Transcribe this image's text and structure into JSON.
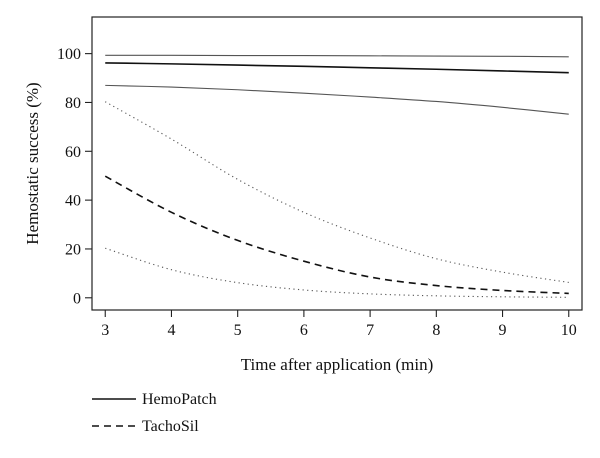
{
  "chart_data": {
    "type": "line",
    "title": "",
    "xlabel": "Time after application (min)",
    "ylabel": "Hemostatic success (%)",
    "xlim": [
      2.8,
      10.2
    ],
    "ylim": [
      -5,
      115
    ],
    "xticks": [
      3,
      4,
      5,
      6,
      7,
      8,
      9,
      10
    ],
    "yticks": [
      0,
      20,
      40,
      60,
      80,
      100
    ],
    "grid": false,
    "legend_position": "bottom-left",
    "series": [
      {
        "name": "HemoPatch",
        "role": "estimate",
        "line_style": "solid",
        "color": "#111111",
        "x": [
          3,
          4,
          5,
          6,
          7,
          8,
          9,
          10
        ],
        "y": [
          96.2,
          95.8,
          95.3,
          94.8,
          94.2,
          93.6,
          92.9,
          92.2
        ]
      },
      {
        "name": "HemoPatch upper bound",
        "role": "confidence-band",
        "line_style": "solid",
        "color": "#555555",
        "x": [
          3,
          4,
          5,
          6,
          7,
          8,
          9,
          10
        ],
        "y": [
          99.3,
          99.3,
          99.2,
          99.2,
          99.1,
          99.0,
          98.9,
          98.7
        ]
      },
      {
        "name": "HemoPatch lower bound",
        "role": "confidence-band",
        "line_style": "solid",
        "color": "#555555",
        "x": [
          3,
          4,
          5,
          6,
          7,
          8,
          9,
          10
        ],
        "y": [
          87.0,
          86.3,
          85.2,
          83.8,
          82.2,
          80.4,
          78.0,
          75.2
        ]
      },
      {
        "name": "TachoSil",
        "role": "estimate",
        "line_style": "dashed",
        "color": "#111111",
        "x": [
          3,
          4,
          5,
          6,
          7,
          8,
          9,
          10
        ],
        "y": [
          49.8,
          35.0,
          23.5,
          15.0,
          8.5,
          5.0,
          3.0,
          1.8
        ]
      },
      {
        "name": "TachoSil upper bound",
        "role": "confidence-band",
        "line_style": "dotted",
        "color": "#555555",
        "x": [
          3,
          4,
          5,
          6,
          7,
          8,
          9,
          10
        ],
        "y": [
          80.3,
          65.0,
          48.5,
          35.0,
          24.5,
          16.0,
          10.5,
          6.3
        ]
      },
      {
        "name": "TachoSil lower bound",
        "role": "confidence-band",
        "line_style": "dotted",
        "color": "#555555",
        "x": [
          3,
          4,
          5,
          6,
          7,
          8,
          9,
          10
        ],
        "y": [
          20.3,
          11.5,
          6.2,
          3.2,
          1.6,
          0.8,
          0.4,
          0.2
        ]
      }
    ],
    "legend": [
      {
        "label": "HemoPatch",
        "line_style": "solid"
      },
      {
        "label": "TachoSil",
        "line_style": "dashed"
      }
    ]
  }
}
